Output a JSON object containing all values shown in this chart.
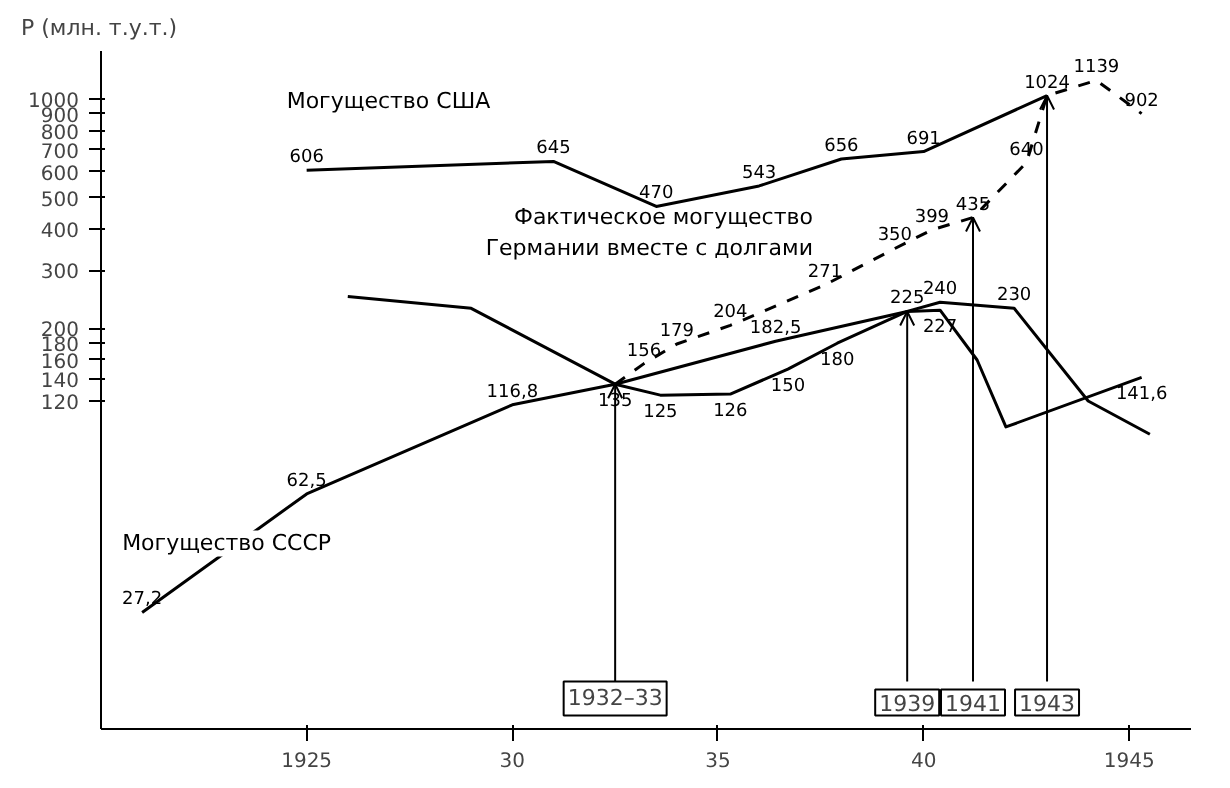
{
  "chart_data": {
    "type": "line",
    "ylabel": "Р (млн. т.у.т.)",
    "log": "y",
    "grid": false,
    "marker": "none",
    "xlim": [
      1920,
      1946.5
    ],
    "xticks": [
      1925,
      {
        "value": 1930,
        "label": "30"
      },
      {
        "value": 1935,
        "label": "35"
      },
      {
        "value": 1940,
        "label": "40"
      },
      1945
    ],
    "ylim": [
      12,
      1400
    ],
    "yticks": [
      120,
      140,
      160,
      180,
      200,
      300,
      400,
      500,
      600,
      700,
      800,
      900,
      1000
    ],
    "series": [
      {
        "name": "Могущество США",
        "color": "#000000",
        "line_style": "solid",
        "x": [
          1925,
          1931,
          1933.5,
          1936,
          1938,
          1940,
          1943
        ],
        "values": [
          606,
          645,
          470,
          543,
          656,
          691,
          1024
        ],
        "value_labels": [
          "606",
          "645",
          "470",
          "543",
          "656",
          "691",
          "1024"
        ]
      },
      {
        "name": "Фактическое могущество\nГермании вместе с долгами",
        "color": "#000000",
        "line_style": "dashed",
        "x": [
          1932.5,
          1933.2,
          1934,
          1935.3,
          1937.6,
          1939.3,
          1940.2,
          1941.2,
          1942.5,
          1943,
          1944.2,
          1945.3
        ],
        "values": [
          135,
          156,
          179,
          204,
          271,
          350,
          399,
          435,
          640,
          1024,
          1139,
          902
        ],
        "value_labels": [
          null,
          "156",
          "179",
          "204",
          "271",
          "350",
          "399",
          "435",
          "640",
          null,
          "1139",
          "902"
        ]
      },
      {
        "color": "#000000",
        "line_style": "solid",
        "x": [
          1926,
          1929,
          1932.5,
          1933.6,
          1935.3,
          1936.7,
          1937.9,
          1939.6,
          1940.4,
          1941.3,
          1942,
          1945.3
        ],
        "values": [
          250,
          230,
          135,
          125,
          126,
          150,
          180,
          225,
          227,
          160,
          100,
          141.6
        ],
        "value_labels": [
          null,
          null,
          "135",
          "125",
          "126",
          "150",
          "180",
          null,
          "227",
          null,
          null,
          "141,6"
        ]
      },
      {
        "name": "Могущество СССР",
        "color": "#000000",
        "line_style": "solid",
        "x": [
          1921,
          1925,
          1930,
          1932.5,
          1936.4,
          1939.6,
          1940.4,
          1942.2,
          1944,
          1945.5
        ],
        "values": [
          27.2,
          62.5,
          116.8,
          135,
          182.5,
          225,
          240,
          230,
          120,
          95
        ],
        "value_labels": [
          "27,2",
          "62,5",
          "116,8",
          null,
          "182,5",
          "225",
          "240",
          "230",
          null,
          null
        ]
      }
    ],
    "annotations": [
      {
        "text": "1932–33",
        "x": 1932.5,
        "y": 135
      },
      {
        "text": "1939",
        "x": 1939.6,
        "y": 225
      },
      {
        "text": "1941",
        "x": 1941.2,
        "y": 435
      },
      {
        "text": "1943",
        "x": 1943,
        "y": 1024
      }
    ]
  }
}
